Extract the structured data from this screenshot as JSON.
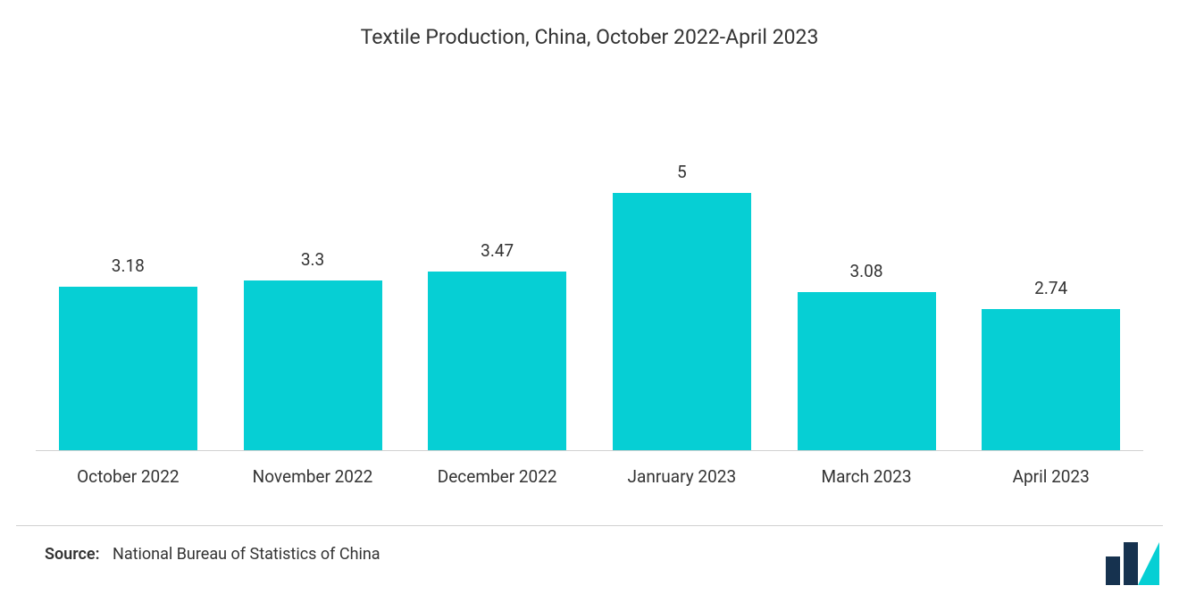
{
  "chart": {
    "type": "bar",
    "title": "Textile Production, China, October 2022-April 2023",
    "title_fontsize": 23,
    "title_color": "#333333",
    "categories": [
      "October 2022",
      "November 2022",
      "December 2022",
      "Janruary 2023",
      "March 2023",
      "April 2023"
    ],
    "values": [
      3.18,
      3.3,
      3.47,
      5,
      3.08,
      2.74
    ],
    "value_labels": [
      "3.18",
      "3.3",
      "3.47",
      "5",
      "3.08",
      "2.74"
    ],
    "bar_color": "#06cfd4",
    "bar_width_ratio": 0.75,
    "value_label_fontsize": 19,
    "value_label_color": "#333333",
    "xlabel_fontsize": 19,
    "xlabel_color": "#333333",
    "y_max": 6.5,
    "baseline_color": "rgba(0,0,0,.18)",
    "background_color": "#ffffff"
  },
  "source": {
    "label": "Source:",
    "text": "National Bureau of Statistics of China",
    "fontsize": 18,
    "color": "#333333"
  },
  "logo": {
    "bar_color": "#16324f",
    "accent_color": "#06cfd4"
  }
}
